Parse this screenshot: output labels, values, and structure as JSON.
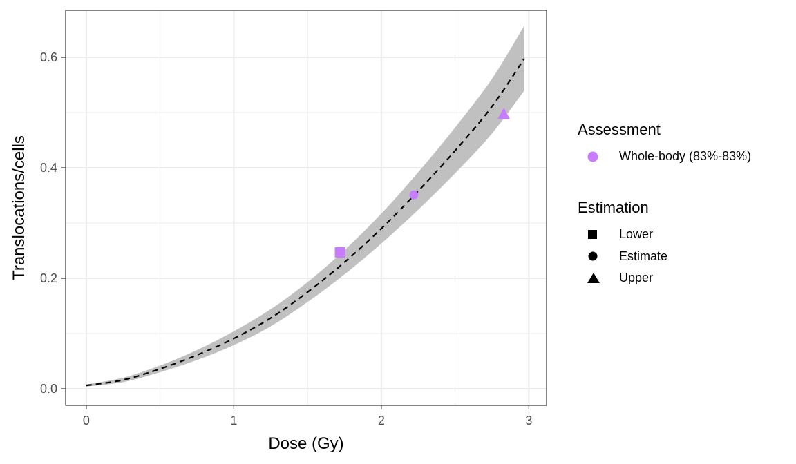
{
  "chart_data": {
    "type": "line",
    "xlabel": "Dose (Gy)",
    "ylabel": "Translocations/cells",
    "xlim": [
      -0.14,
      3.12
    ],
    "ylim": [
      -0.03,
      0.685
    ],
    "x_ticks": [
      "0",
      "1",
      "2",
      "3"
    ],
    "x_tick_values": [
      0,
      1,
      2,
      3
    ],
    "y_ticks": [
      "0.0",
      "0.2",
      "0.4",
      "0.6"
    ],
    "y_tick_values": [
      0,
      0.2,
      0.4,
      0.6
    ],
    "grid": true,
    "curve": {
      "style": "dashed",
      "color": "#000000",
      "x": [
        0,
        0.25,
        0.5,
        0.75,
        1.0,
        1.25,
        1.5,
        1.75,
        2.0,
        2.25,
        2.5,
        2.75,
        2.97
      ],
      "y": [
        0.006,
        0.016,
        0.036,
        0.061,
        0.091,
        0.128,
        0.175,
        0.229,
        0.29,
        0.358,
        0.431,
        0.511,
        0.598
      ],
      "lower": [
        0.004,
        0.012,
        0.03,
        0.052,
        0.079,
        0.113,
        0.157,
        0.207,
        0.263,
        0.324,
        0.39,
        0.462,
        0.54
      ],
      "upper": [
        0.008,
        0.02,
        0.042,
        0.07,
        0.104,
        0.144,
        0.193,
        0.251,
        0.317,
        0.392,
        0.473,
        0.561,
        0.658
      ],
      "band_color": "#c0c0c0"
    },
    "points": [
      {
        "estimation": "Lower",
        "shape": "square",
        "x": 1.72,
        "y": 0.247
      },
      {
        "estimation": "Estimate",
        "shape": "circle",
        "x": 2.22,
        "y": 0.351
      },
      {
        "estimation": "Upper",
        "shape": "triangle",
        "x": 2.83,
        "y": 0.497
      }
    ],
    "point_color": "#c77cff",
    "legend_placement": "right"
  },
  "legend": {
    "assessment_title": "Assessment",
    "assessment_items": [
      {
        "label": "Whole-body (83%-83%)",
        "color": "#c77cff",
        "shape": "circle"
      }
    ],
    "estimation_title": "Estimation",
    "estimation_items": [
      {
        "label": "Lower",
        "shape": "square"
      },
      {
        "label": "Estimate",
        "shape": "circle"
      },
      {
        "label": "Upper",
        "shape": "triangle"
      }
    ]
  }
}
